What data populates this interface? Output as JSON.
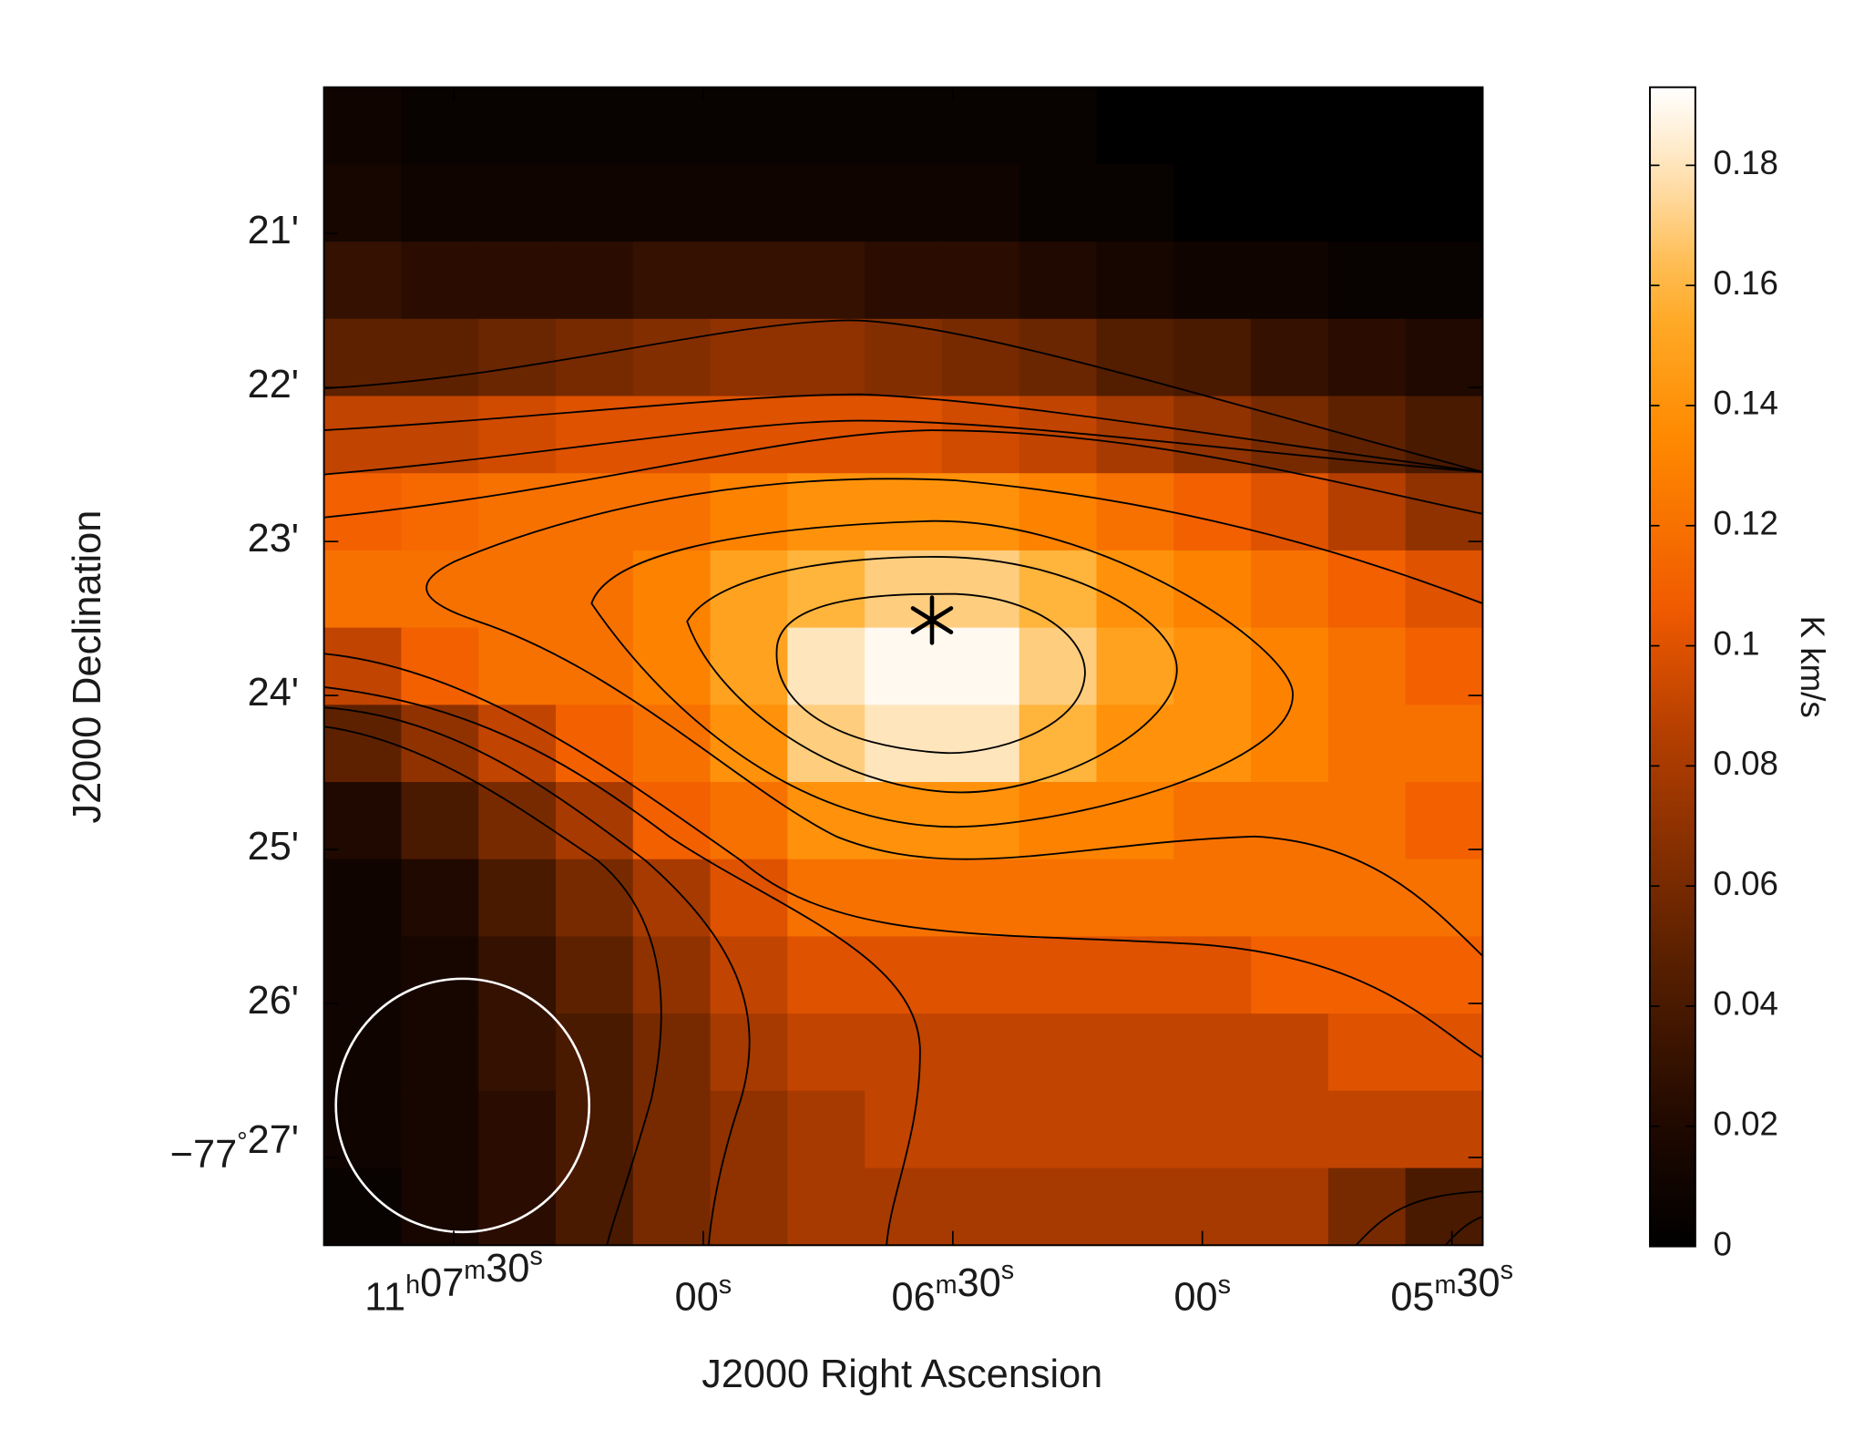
{
  "chart_data": {
    "type": "image",
    "xlabel": "J2000 Right Ascension",
    "ylabel": "J2000 Declination",
    "colorbar_label": "K km/s",
    "colormap": "heat",
    "xlim": [
      40065.6,
      39926.3
    ],
    "xticks": [
      {
        "value": 40050,
        "label": "11h07m30s"
      },
      {
        "value": 40020,
        "label": "00s"
      },
      {
        "value": 39990,
        "label": "06m30s"
      },
      {
        "value": 39960,
        "label": "00s"
      },
      {
        "value": 39930,
        "label": "05m30s"
      }
    ],
    "ylim": [
      -4647.57,
      -4640.05
    ],
    "yticks": [
      {
        "value": -4641,
        "label": "21'"
      },
      {
        "value": -4642,
        "label": "22'"
      },
      {
        "value": -4643,
        "label": "23'"
      },
      {
        "value": -4644,
        "label": "24'"
      },
      {
        "value": -4645,
        "label": "25'"
      },
      {
        "value": -4646,
        "label": "26'"
      },
      {
        "value": -4647,
        "label": "−77°27'"
      }
    ],
    "clim": [
      0,
      0.193
    ],
    "cticks": [
      0,
      0.02,
      0.04,
      0.06,
      0.08,
      0.1,
      0.12,
      0.14,
      0.16,
      0.18
    ],
    "z": [
      [
        0.01,
        0.005,
        0.005,
        0.005,
        0.005,
        0.005,
        0.005,
        0.005,
        0.005,
        0.005,
        0,
        0,
        0,
        0,
        0
      ],
      [
        0.015,
        0.01,
        0.01,
        0.01,
        0.01,
        0.01,
        0.01,
        0.01,
        0.01,
        0.005,
        0.005,
        0,
        0,
        0,
        0
      ],
      [
        0.03,
        0.025,
        0.025,
        0.025,
        0.03,
        0.03,
        0.03,
        0.025,
        0.025,
        0.02,
        0.015,
        0.01,
        0.01,
        0.005,
        0.005
      ],
      [
        0.05,
        0.05,
        0.055,
        0.06,
        0.065,
        0.07,
        0.07,
        0.065,
        0.06,
        0.055,
        0.045,
        0.04,
        0.03,
        0.025,
        0.02
      ],
      [
        0.09,
        0.09,
        0.095,
        0.1,
        0.1,
        0.1,
        0.1,
        0.1,
        0.095,
        0.09,
        0.08,
        0.07,
        0.06,
        0.05,
        0.04
      ],
      [
        0.11,
        0.115,
        0.12,
        0.12,
        0.12,
        0.13,
        0.14,
        0.14,
        0.14,
        0.13,
        0.12,
        0.11,
        0.1,
        0.085,
        0.07
      ],
      [
        0.12,
        0.12,
        0.12,
        0.12,
        0.13,
        0.15,
        0.16,
        0.17,
        0.17,
        0.16,
        0.14,
        0.13,
        0.12,
        0.11,
        0.1
      ],
      [
        0.09,
        0.11,
        0.12,
        0.12,
        0.13,
        0.15,
        0.18,
        0.19,
        0.19,
        0.17,
        0.15,
        0.14,
        0.13,
        0.12,
        0.11
      ],
      [
        0.05,
        0.07,
        0.09,
        0.11,
        0.12,
        0.14,
        0.17,
        0.18,
        0.18,
        0.16,
        0.14,
        0.14,
        0.13,
        0.12,
        0.12
      ],
      [
        0.02,
        0.04,
        0.06,
        0.08,
        0.11,
        0.12,
        0.14,
        0.14,
        0.14,
        0.13,
        0.13,
        0.12,
        0.12,
        0.12,
        0.11
      ],
      [
        0.01,
        0.02,
        0.04,
        0.06,
        0.08,
        0.1,
        0.12,
        0.12,
        0.12,
        0.12,
        0.12,
        0.12,
        0.12,
        0.12,
        0.12
      ],
      [
        0.01,
        0.015,
        0.03,
        0.05,
        0.07,
        0.09,
        0.1,
        0.1,
        0.1,
        0.1,
        0.1,
        0.1,
        0.11,
        0.11,
        0.11
      ],
      [
        0.01,
        0.015,
        0.03,
        0.04,
        0.06,
        0.08,
        0.09,
        0.09,
        0.09,
        0.09,
        0.09,
        0.09,
        0.09,
        0.1,
        0.1
      ],
      [
        0.01,
        0.015,
        0.025,
        0.04,
        0.06,
        0.07,
        0.08,
        0.09,
        0.09,
        0.09,
        0.09,
        0.09,
        0.09,
        0.09,
        0.09
      ],
      [
        0.005,
        0.015,
        0.025,
        0.04,
        0.06,
        0.07,
        0.08,
        0.08,
        0.08,
        0.08,
        0.08,
        0.08,
        0.08,
        0.06,
        0.04
      ]
    ]
  }
}
